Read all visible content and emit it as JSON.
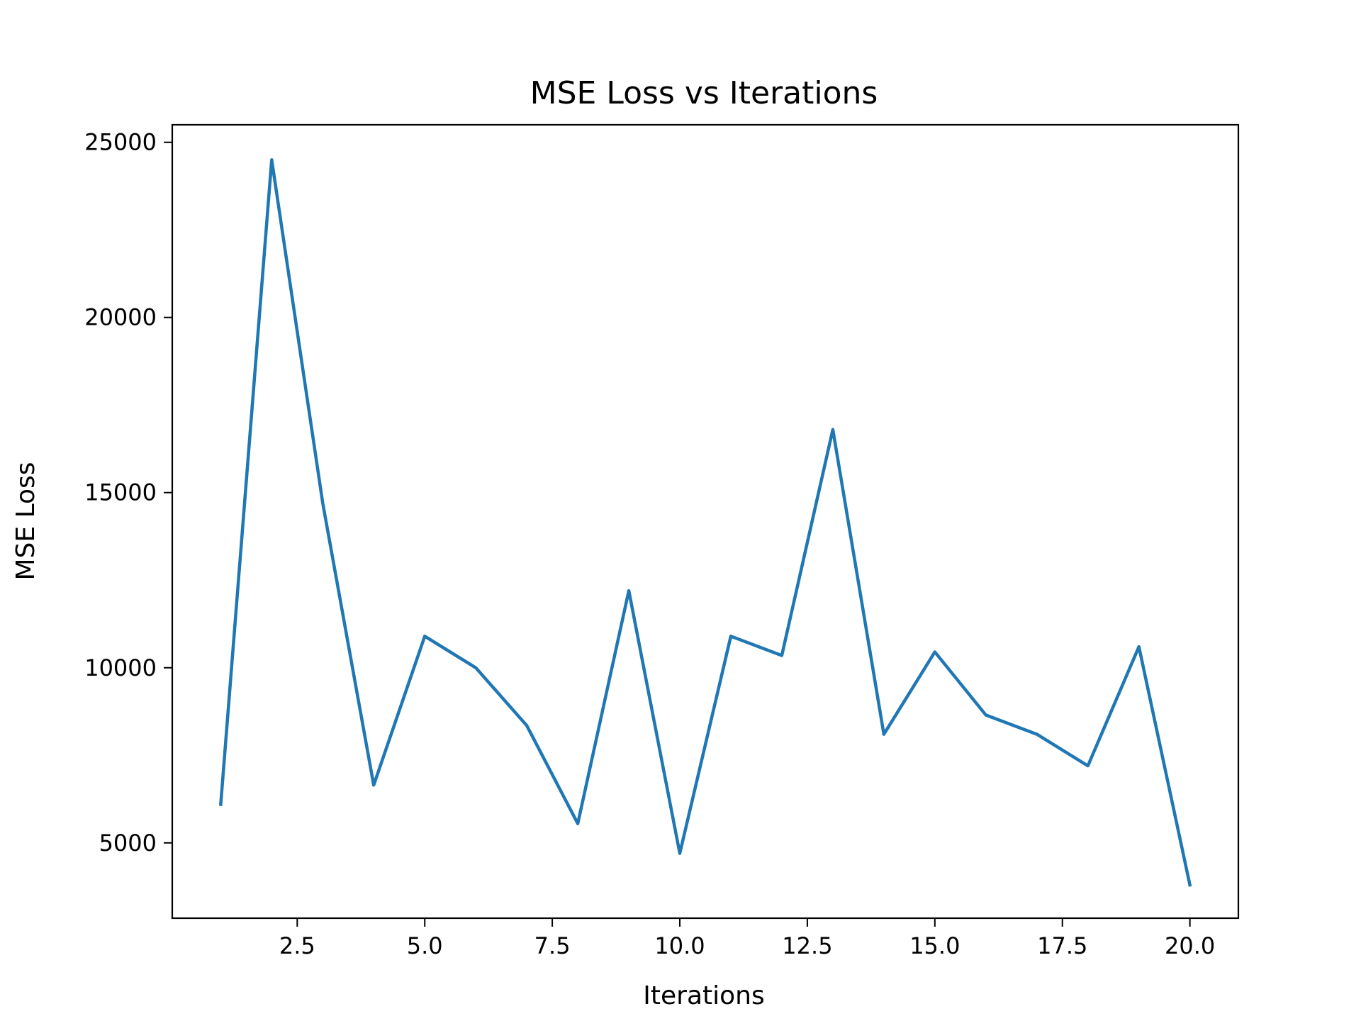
{
  "chart_data": {
    "type": "line",
    "title": "MSE Loss vs Iterations",
    "xlabel": "Iterations",
    "ylabel": "MSE Loss",
    "xlim": [
      0.05,
      20.95
    ],
    "ylim": [
      2850,
      25500
    ],
    "xticks": [
      2.5,
      5.0,
      7.5,
      10.0,
      12.5,
      15.0,
      17.5,
      20.0
    ],
    "xtick_labels": [
      "2.5",
      "5.0",
      "7.5",
      "10.0",
      "12.5",
      "15.0",
      "17.5",
      "20.0"
    ],
    "yticks": [
      5000,
      10000,
      15000,
      20000,
      25000
    ],
    "ytick_labels": [
      "5000",
      "10000",
      "15000",
      "20000",
      "25000"
    ],
    "grid": false,
    "series": [
      {
        "color": "#1f77b4",
        "x": [
          1,
          2,
          3,
          4,
          5,
          6,
          7,
          8,
          9,
          10,
          11,
          12,
          13,
          14,
          15,
          16,
          17,
          18,
          19,
          20
        ],
        "y": [
          6100,
          24500,
          14700,
          6650,
          10900,
          10000,
          8350,
          5550,
          12200,
          4700,
          10900,
          10350,
          16800,
          8100,
          10450,
          8650,
          8100,
          7200,
          10600,
          3800
        ]
      }
    ]
  }
}
